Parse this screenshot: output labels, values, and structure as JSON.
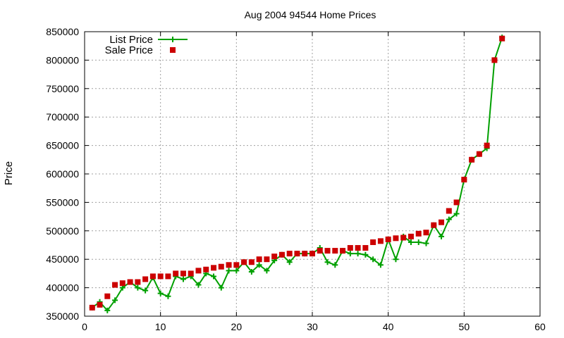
{
  "chart_data": {
    "type": "line",
    "title": "Aug 2004 94544 Home Prices",
    "xlabel": "",
    "ylabel": "Price",
    "xlim": [
      0,
      60
    ],
    "ylim": [
      350000,
      850000
    ],
    "xticks": [
      0,
      10,
      20,
      30,
      40,
      50,
      60
    ],
    "yticks": [
      350000,
      400000,
      450000,
      500000,
      550000,
      600000,
      650000,
      700000,
      750000,
      800000,
      850000
    ],
    "grid": true,
    "legend_position": "top-left",
    "x": [
      1,
      2,
      3,
      4,
      5,
      6,
      7,
      8,
      9,
      10,
      11,
      12,
      13,
      14,
      15,
      16,
      17,
      18,
      19,
      20,
      21,
      22,
      23,
      24,
      25,
      26,
      27,
      28,
      29,
      30,
      31,
      32,
      33,
      34,
      35,
      36,
      37,
      38,
      39,
      40,
      41,
      42,
      43,
      44,
      45,
      46,
      47,
      48,
      49,
      50,
      51,
      52,
      53,
      54,
      55
    ],
    "series": [
      {
        "name": "List Price",
        "style": "linespoints",
        "color": "#00a000",
        "values": [
          365000,
          375000,
          360000,
          378000,
          400000,
          410000,
          400000,
          395000,
          418000,
          390000,
          385000,
          420000,
          415000,
          420000,
          405000,
          425000,
          420000,
          400000,
          430000,
          430000,
          445000,
          428000,
          440000,
          430000,
          448000,
          458000,
          445000,
          460000,
          460000,
          460000,
          470000,
          445000,
          440000,
          465000,
          460000,
          460000,
          458000,
          450000,
          440000,
          485000,
          450000,
          490000,
          480000,
          480000,
          478000,
          510000,
          490000,
          520000,
          530000,
          590000,
          625000,
          635000,
          645000,
          800000,
          840000
        ]
      },
      {
        "name": "Sale Price",
        "style": "points",
        "color": "#cc0000",
        "values": [
          365000,
          370000,
          385000,
          405000,
          408000,
          410000,
          410000,
          415000,
          420000,
          420000,
          420000,
          425000,
          425000,
          425000,
          430000,
          432000,
          435000,
          437000,
          440000,
          440000,
          445000,
          445000,
          450000,
          450000,
          455000,
          458000,
          460000,
          460000,
          460000,
          460000,
          465000,
          465000,
          465000,
          465000,
          470000,
          470000,
          470000,
          480000,
          482000,
          485000,
          487000,
          488000,
          490000,
          495000,
          497000,
          510000,
          515000,
          535000,
          550000,
          590000,
          625000,
          635000,
          650000,
          800000,
          838000
        ]
      }
    ]
  }
}
